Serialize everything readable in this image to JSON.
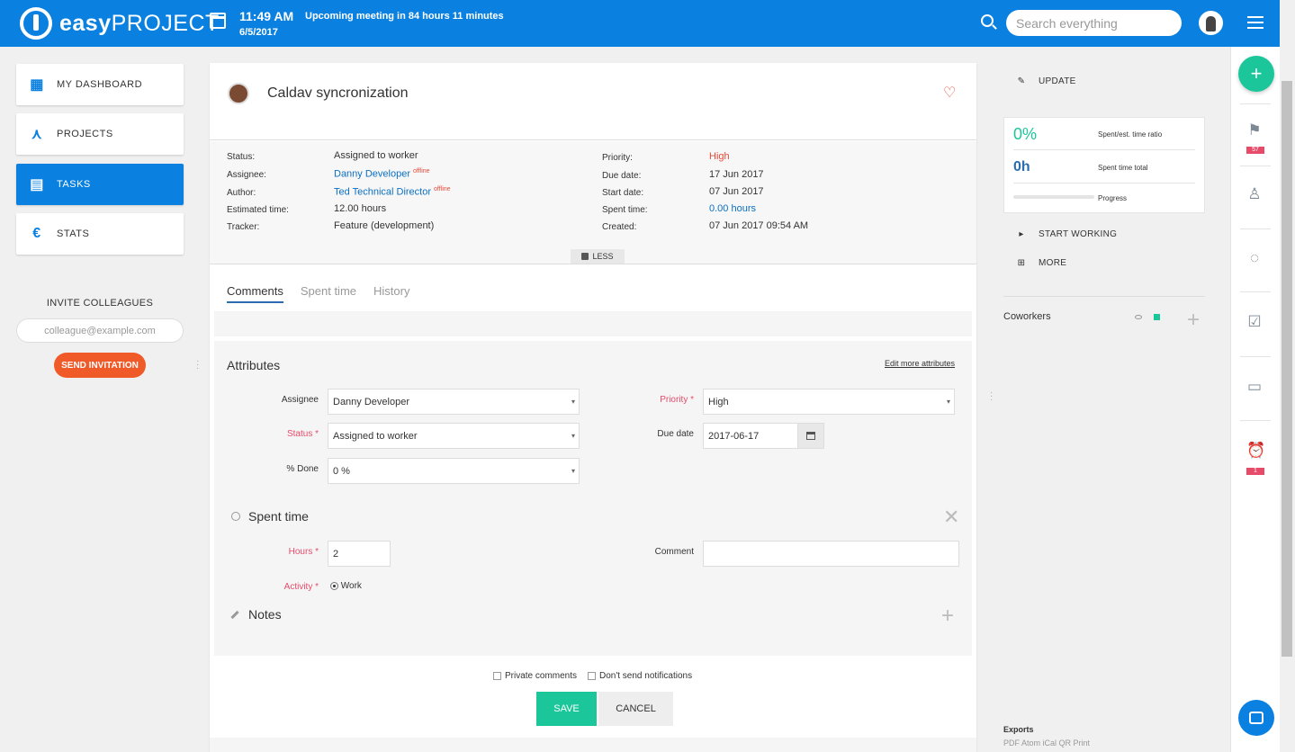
{
  "header": {
    "logo_bold": "easy",
    "logo_light": "PROJECT",
    "time": "11:49 AM",
    "date": "6/5/2017",
    "meeting": "Upcoming meeting in 84 hours 11 minutes",
    "search_placeholder": "Search everything"
  },
  "nav": {
    "items": [
      {
        "label": "MY DASHBOARD",
        "icon": "dashboard-icon"
      },
      {
        "label": "PROJECTS",
        "icon": "projects-icon"
      },
      {
        "label": "TASKS",
        "icon": "tasks-icon"
      },
      {
        "label": "STATS",
        "icon": "euro-icon"
      }
    ],
    "invite_title": "INVITE COLLEAGUES",
    "invite_placeholder": "colleague@example.com",
    "invite_button": "SEND INVITATION"
  },
  "task": {
    "title": "Caldav syncronization",
    "left_fields": [
      {
        "label": "Status:",
        "value": "Assigned to worker"
      },
      {
        "label": "Assignee:",
        "value": "Danny Developer",
        "status": "offline"
      },
      {
        "label": "Author:",
        "value": "Ted Technical Director",
        "status": "offline"
      },
      {
        "label": "Estimated time:",
        "value": "12.00 hours"
      },
      {
        "label": "Tracker:",
        "value": "Feature (development)"
      }
    ],
    "right_fields": [
      {
        "label": "Priority:",
        "value": "High"
      },
      {
        "label": "Due date:",
        "value": "17 Jun 2017"
      },
      {
        "label": "Start date:",
        "value": "07 Jun 2017"
      },
      {
        "label": "Spent time:",
        "value": "0.00 hours"
      },
      {
        "label": "Created:",
        "value": "07 Jun 2017 09:54 AM"
      }
    ],
    "less_label": "LESS"
  },
  "tabs": [
    "Comments",
    "Spent time",
    "History"
  ],
  "attributes": {
    "title": "Attributes",
    "edit_more": "Edit more attributes",
    "assignee_label": "Assignee",
    "assignee_value": "Danny Developer",
    "status_label": "Status *",
    "status_value": "Assigned to worker",
    "done_label": "% Done",
    "done_value": "0 %",
    "priority_label": "Priority *",
    "priority_value": "High",
    "due_label": "Due date",
    "due_value": "2017-06-17"
  },
  "spent": {
    "title": "Spent time",
    "hours_label": "Hours *",
    "hours_value": "2",
    "comment_label": "Comment",
    "activity_label": "Activity *",
    "activity_value": "Work"
  },
  "notes": {
    "title": "Notes"
  },
  "footer": {
    "private_comments": "Private comments",
    "no_notifications": "Don't send notifications",
    "save": "SAVE",
    "cancel": "CANCEL"
  },
  "sidebar": {
    "update": "UPDATE",
    "ratio_value": "0%",
    "ratio_label": "Spent/est. time ratio",
    "total_value": "0h",
    "total_label": "Spent time total",
    "progress_label": "Progress",
    "progress_fraction": 0,
    "start_working": "START WORKING",
    "more": "MORE",
    "coworkers": "Coworkers",
    "exports_title": "Exports",
    "exports_links": "PDF  Atom  iCal  QR  Print"
  },
  "rail": {
    "flag_badge": "57",
    "alarm_badge": "1"
  },
  "colors": {
    "brand_blue": "#0a80e0",
    "accent_green": "#1bc79a",
    "invite_orange": "#f05a28",
    "priority_red": "#e84b3a"
  }
}
